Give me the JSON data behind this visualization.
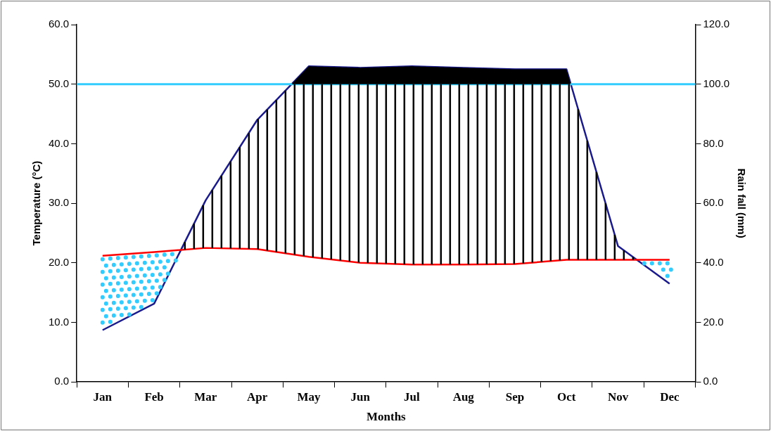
{
  "chart_data": {
    "type": "line",
    "xlabel": "Months",
    "ylabel": "Temperature (°C)",
    "y2label": "Rain fall (mm)",
    "categories": [
      "Jan",
      "Feb",
      "Mar",
      "Apr",
      "May",
      "Jun",
      "Jul",
      "Aug",
      "Sep",
      "Oct",
      "Nov",
      "Dec"
    ],
    "series": [
      {
        "color": "#ff0000",
        "values": [
          21.2,
          21.8,
          22.5,
          22.3,
          21.0,
          20.0,
          19.7,
          19.7,
          19.8,
          20.5,
          20.5,
          20.5
        ]
      },
      {
        "color": "#1a1a8c",
        "axis": "y2",
        "values": [
          17.4,
          26.3,
          61,
          88,
          106,
          105.5,
          106,
          105.5,
          105,
          105,
          45.6,
          33
        ]
      }
    ],
    "ylim": [
      0,
      60
    ],
    "yticks": [
      {
        "value": 0,
        "label": "0.0"
      },
      {
        "value": 10,
        "label": "10.0"
      },
      {
        "value": 20,
        "label": "20.0"
      },
      {
        "value": 30,
        "label": "30.0"
      },
      {
        "value": 40,
        "label": "40.0"
      },
      {
        "value": 50,
        "label": "50.0"
      },
      {
        "value": 60,
        "label": "60.0"
      }
    ],
    "y2lim": [
      0,
      120
    ],
    "y2ticks": [
      {
        "value": 0,
        "label": "0.0"
      },
      {
        "value": 20,
        "label": "20.0"
      },
      {
        "value": 40,
        "label": "40.0"
      },
      {
        "value": 60,
        "label": "60.0"
      },
      {
        "value": 80,
        "label": "80.0"
      },
      {
        "value": 100,
        "label": "100.0"
      },
      {
        "value": 120,
        "label": "120.0"
      }
    ],
    "ref_lines": [
      {
        "axis": "y2",
        "value": 100,
        "color": "#33ccff"
      }
    ],
    "grid": false,
    "legend": false,
    "marker": "none",
    "line_style": "solid"
  }
}
